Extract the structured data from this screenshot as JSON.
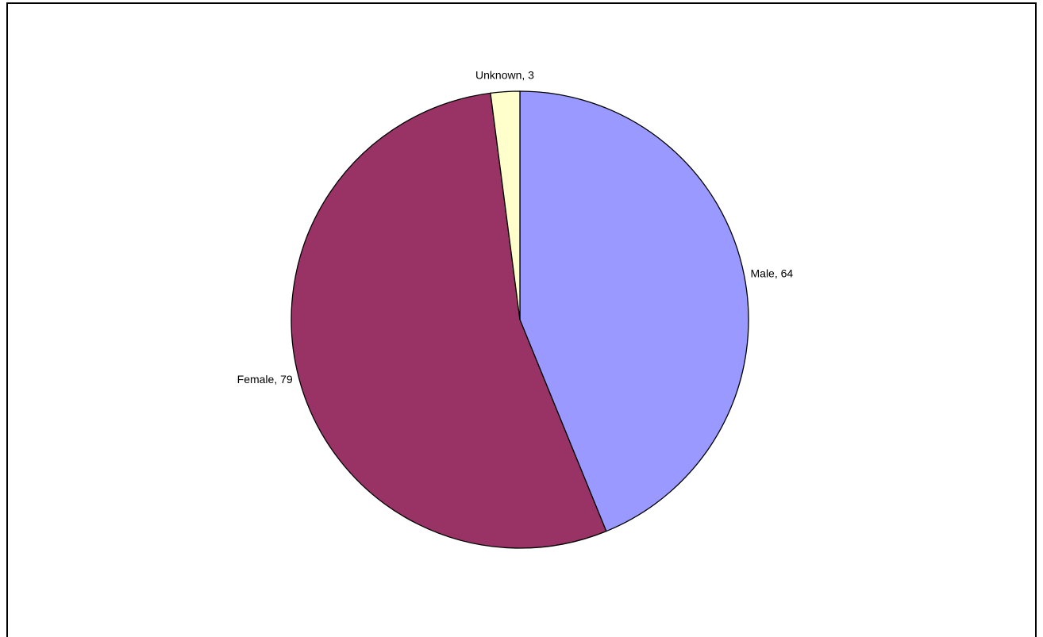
{
  "chart_data": {
    "type": "pie",
    "title": "",
    "slices": [
      {
        "name": "Male",
        "value": 64,
        "color": "#9999FF",
        "label": "Male, 64"
      },
      {
        "name": "Female",
        "value": 79,
        "color": "#993366",
        "label": "Female, 79"
      },
      {
        "name": "Unknown",
        "value": 3,
        "color": "#FFFFCC",
        "label": "Unknown, 3"
      }
    ],
    "start_angle_deg": 0,
    "direction": "clockwise",
    "legend": "none",
    "edge_color": "#000000"
  }
}
